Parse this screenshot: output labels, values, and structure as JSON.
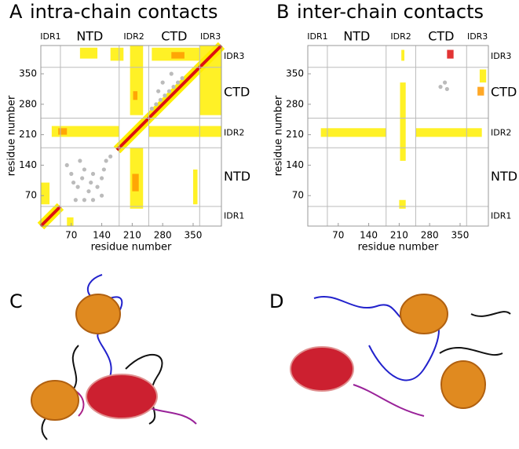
{
  "chart_data": [
    {
      "type": "heatmap",
      "panel": "A",
      "title": "intra-chain contacts",
      "xlabel": "residue number",
      "ylabel": "residue number",
      "xlim": [
        0,
        415
      ],
      "ylim": [
        0,
        415
      ],
      "xticks": [
        70,
        140,
        210,
        280,
        350
      ],
      "yticks": [
        70,
        140,
        210,
        280,
        350
      ],
      "domains": [
        {
          "name": "IDR1",
          "start": 0,
          "end": 45
        },
        {
          "name": "NTD",
          "start": 45,
          "end": 180
        },
        {
          "name": "IDR2",
          "start": 180,
          "end": 248
        },
        {
          "name": "CTD",
          "start": 248,
          "end": 365
        },
        {
          "name": "IDR3",
          "start": 365,
          "end": 415
        }
      ],
      "diagonal": [
        [
          0,
          45
        ],
        [
          175,
          415
        ]
      ],
      "contacts": [
        [
          205,
          235,
          40,
          180,
          1
        ],
        [
          205,
          235,
          255,
          415,
          1
        ],
        [
          210,
          225,
          80,
          120,
          2
        ],
        [
          212,
          222,
          290,
          310,
          2
        ],
        [
          25,
          180,
          205,
          230,
          1
        ],
        [
          248,
          415,
          205,
          230,
          1
        ],
        [
          40,
          60,
          210,
          225,
          2
        ],
        [
          365,
          415,
          255,
          415,
          1
        ],
        [
          255,
          365,
          380,
          410,
          1
        ],
        [
          160,
          190,
          380,
          410,
          1
        ],
        [
          90,
          130,
          385,
          410,
          1
        ],
        [
          0,
          20,
          50,
          100,
          1
        ],
        [
          60,
          75,
          0,
          20,
          1
        ],
        [
          350,
          360,
          50,
          130,
          1
        ],
        [
          300,
          330,
          385,
          400,
          2
        ]
      ],
      "native": [
        [
          60,
          140
        ],
        [
          70,
          120
        ],
        [
          75,
          100
        ],
        [
          85,
          90
        ],
        [
          95,
          110
        ],
        [
          100,
          130
        ],
        [
          110,
          80
        ],
        [
          115,
          100
        ],
        [
          120,
          120
        ],
        [
          130,
          90
        ],
        [
          140,
          110
        ],
        [
          145,
          130
        ],
        [
          150,
          150
        ],
        [
          160,
          160
        ],
        [
          90,
          150
        ],
        [
          80,
          60
        ],
        [
          100,
          60
        ],
        [
          120,
          60
        ],
        [
          140,
          70
        ],
        [
          255,
          270
        ],
        [
          265,
          280
        ],
        [
          275,
          290
        ],
        [
          285,
          300
        ],
        [
          295,
          310
        ],
        [
          305,
          320
        ],
        [
          315,
          330
        ],
        [
          325,
          340
        ],
        [
          280,
          330
        ],
        [
          300,
          350
        ],
        [
          270,
          310
        ]
      ],
      "colors": {
        "1": "#ffee00",
        "2": "#ff9900",
        "3": "#dd1111",
        "native": "#bbbbbb"
      }
    },
    {
      "type": "heatmap",
      "panel": "B",
      "title": "inter-chain contacts",
      "xlabel": "residue number",
      "ylabel": "residue number",
      "xlim": [
        0,
        415
      ],
      "ylim": [
        0,
        415
      ],
      "xticks": [
        70,
        140,
        210,
        280,
        350
      ],
      "yticks": [
        70,
        140,
        210,
        280,
        350
      ],
      "domains": [
        {
          "name": "IDR1",
          "start": 0,
          "end": 45
        },
        {
          "name": "NTD",
          "start": 45,
          "end": 180
        },
        {
          "name": "IDR2",
          "start": 180,
          "end": 248
        },
        {
          "name": "CTD",
          "start": 248,
          "end": 365
        },
        {
          "name": "IDR3",
          "start": 365,
          "end": 415
        }
      ],
      "diagonal": [],
      "contacts": [
        [
          210,
          225,
          40,
          60,
          1
        ],
        [
          212,
          225,
          150,
          330,
          1
        ],
        [
          215,
          222,
          380,
          405,
          1
        ],
        [
          30,
          180,
          205,
          225,
          1
        ],
        [
          248,
          400,
          205,
          225,
          1
        ],
        [
          320,
          335,
          385,
          405,
          3
        ],
        [
          390,
          405,
          300,
          320,
          2
        ],
        [
          395,
          410,
          330,
          360,
          1
        ]
      ],
      "native": [
        [
          305,
          320
        ],
        [
          315,
          330
        ],
        [
          320,
          315
        ]
      ],
      "colors": {
        "1": "#ffee00",
        "2": "#ff9900",
        "3": "#dd1111",
        "native": "#bbbbbb"
      }
    }
  ],
  "images": [
    {
      "panel": "C"
    },
    {
      "panel": "D"
    }
  ]
}
